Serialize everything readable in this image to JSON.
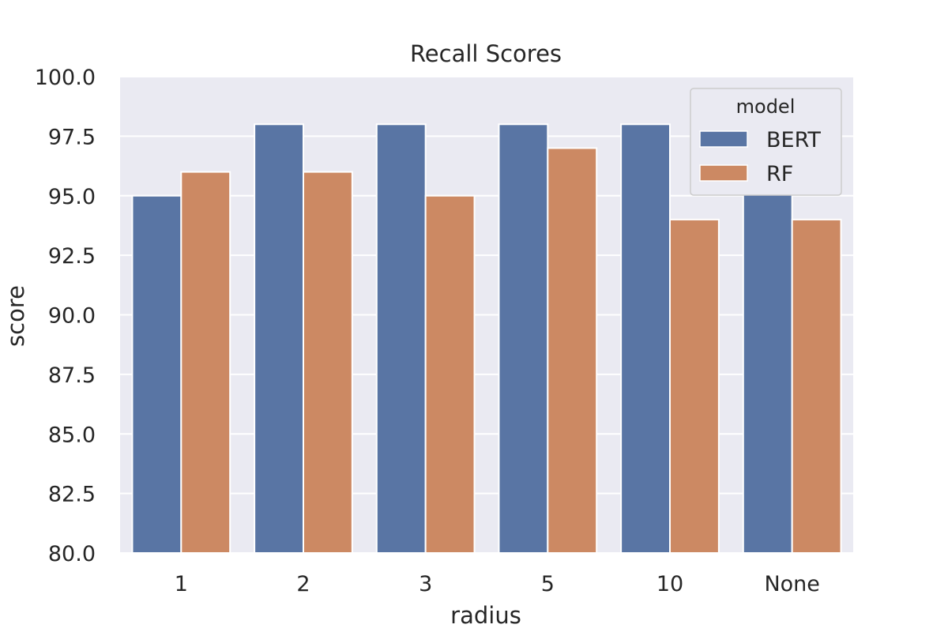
{
  "chart_data": {
    "type": "bar",
    "title": "Recall Scores",
    "xlabel": "radius",
    "ylabel": "score",
    "categories": [
      "1",
      "2",
      "3",
      "5",
      "10",
      "None"
    ],
    "series": [
      {
        "name": "BERT",
        "color": "#5975a4",
        "values": [
          95,
          98,
          98,
          98,
          98,
          95.3
        ]
      },
      {
        "name": "RF",
        "color": "#cc8963",
        "values": [
          96,
          96,
          95,
          97,
          94,
          94
        ]
      }
    ],
    "ylim": [
      80,
      100
    ],
    "yticks": [
      "80.0",
      "82.5",
      "85.0",
      "87.5",
      "90.0",
      "92.5",
      "95.0",
      "97.5",
      "100.0"
    ],
    "legend": {
      "title": "model",
      "placement": "top-right"
    },
    "grid": true,
    "style": {
      "plot_background": "#eaeaf2",
      "grid_color": "#ffffff"
    }
  }
}
